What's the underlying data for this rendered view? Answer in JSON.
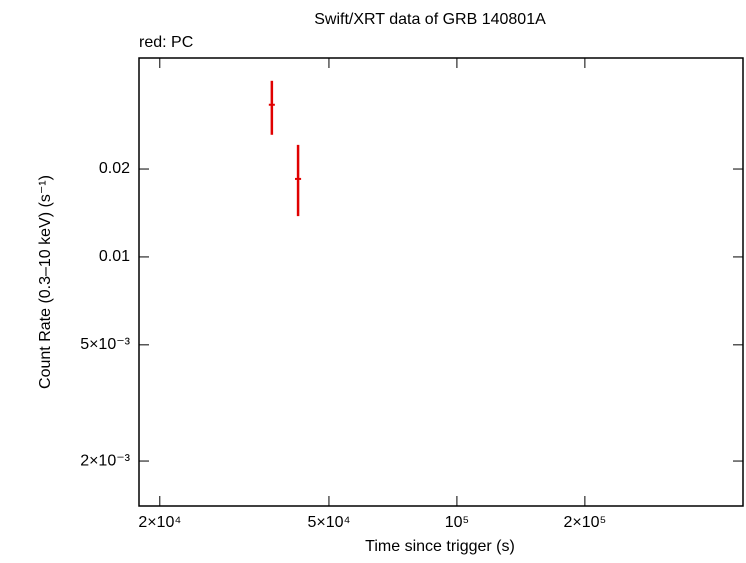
{
  "chart_data": {
    "type": "scatter",
    "title": "Swift/XRT data of GRB 140801A",
    "legend_text": "red: PC",
    "x_label": "Time since trigger (s)",
    "y_label": "Count Rate (0.3–10 keV) (s⁻¹)",
    "xscale": "log",
    "yscale": "log",
    "xlim": [
      17870,
      471000
    ],
    "ylim": [
      0.001403,
      0.048
    ],
    "xticks": [
      {
        "value": 20000,
        "label": "2×10⁴"
      },
      {
        "value": 50000,
        "label": "5×10⁴"
      },
      {
        "value": 100000,
        "label": "10⁵"
      },
      {
        "value": 200000,
        "label": "2×10⁵"
      }
    ],
    "yticks": [
      {
        "value": 0.002,
        "label": "2×10⁻³"
      },
      {
        "value": 0.005,
        "label": "5×10⁻³"
      },
      0.01,
      0.02
    ],
    "series": [
      {
        "name": "PC",
        "color": "#e00000",
        "x": [
          36700,
          42300
        ],
        "x_err": [
          600,
          700
        ],
        "values": [
          0.0332,
          0.0185
        ],
        "y_err_minus": [
          0.007,
          0.0047
        ],
        "y_err_plus": [
          0.0069,
          0.0057
        ]
      }
    ]
  }
}
